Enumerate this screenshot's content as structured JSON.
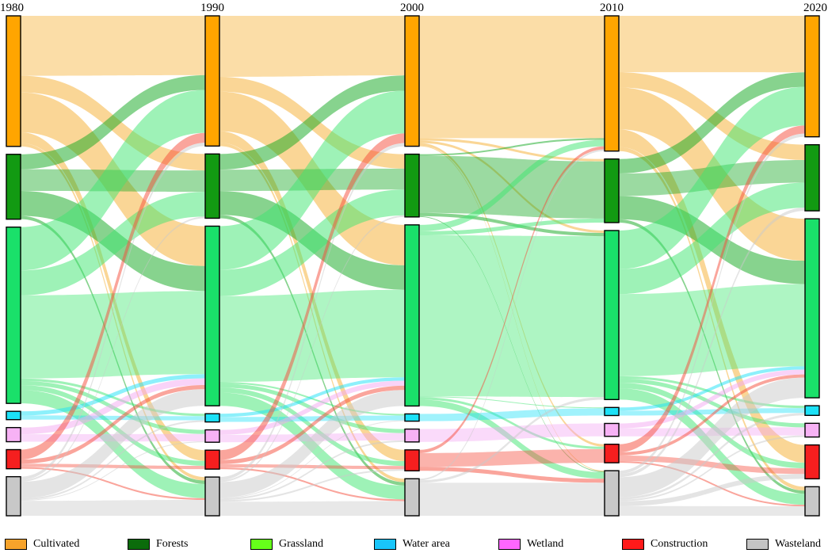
{
  "chart_data": {
    "type": "sankey",
    "years": [
      "1980",
      "1990",
      "2000",
      "2010",
      "2020"
    ],
    "categories": [
      {
        "key": "cultivated",
        "label": "Cultivated",
        "node_color": "#FFA500",
        "flow_color": "#F6AE2D",
        "legend_color": "#F7A32B"
      },
      {
        "key": "forests",
        "label": "Forests",
        "node_color": "#129A12",
        "flow_color": "#10A81E",
        "legend_color": "#0B6C0B"
      },
      {
        "key": "grassland",
        "label": "Grassland",
        "node_color": "#1AE06A",
        "flow_color": "#3EE670",
        "legend_color": "#66FF1A"
      },
      {
        "key": "water",
        "label": "Water area",
        "node_color": "#1CE1F7",
        "flow_color": "#1CE1F7",
        "legend_color": "#19C5FA"
      },
      {
        "key": "wetland",
        "label": "Wetland",
        "node_color": "#F7B2F5",
        "flow_color": "#F4A8F2",
        "legend_color": "#FF66FF"
      },
      {
        "key": "construction",
        "label": "Construction",
        "node_color": "#F51F1F",
        "flow_color": "#F54B3A",
        "legend_color": "#FF1A1A"
      },
      {
        "key": "wasteland",
        "label": "Wasteland",
        "node_color": "#C8C8C8",
        "flow_color": "#C9C9C9",
        "legend_color": "#C4C4C4"
      }
    ],
    "node_values": {
      "1980": [
        15.7,
        7.8,
        21.2,
        1.0,
        1.7,
        2.3,
        4.7
      ],
      "1990": [
        15.8,
        7.8,
        21.8,
        1.0,
        1.5,
        2.3,
        4.7
      ],
      "2000": [
        16.2,
        7.8,
        22.5,
        0.9,
        1.6,
        2.6,
        4.6
      ],
      "2010": [
        16.8,
        7.9,
        21.0,
        1.0,
        1.6,
        2.3,
        5.6
      ],
      "2020": [
        15.0,
        8.2,
        22.2,
        1.2,
        1.7,
        4.2,
        3.6
      ]
    },
    "transitions": [
      {
        "from": "1980",
        "to": "1990",
        "flows": [
          {
            "from": "cultivated",
            "to": "cultivated",
            "value": 7.2
          },
          {
            "from": "cultivated",
            "to": "forests",
            "value": 2.0
          },
          {
            "from": "cultivated",
            "to": "grassland",
            "value": 4.8
          },
          {
            "from": "cultivated",
            "to": "construction",
            "value": 1.3
          },
          {
            "from": "cultivated",
            "to": "wasteland",
            "value": 0.4
          },
          {
            "from": "forests",
            "to": "cultivated",
            "value": 1.8
          },
          {
            "from": "forests",
            "to": "forests",
            "value": 2.6
          },
          {
            "from": "forests",
            "to": "grassland",
            "value": 3.0
          },
          {
            "from": "forests",
            "to": "wasteland",
            "value": 0.4
          },
          {
            "from": "grassland",
            "to": "cultivated",
            "value": 5.2
          },
          {
            "from": "grassland",
            "to": "forests",
            "value": 3.0
          },
          {
            "from": "grassland",
            "to": "grassland",
            "value": 10.0
          },
          {
            "from": "grassland",
            "to": "water",
            "value": 0.3
          },
          {
            "from": "grassland",
            "to": "wetland",
            "value": 0.5
          },
          {
            "from": "grassland",
            "to": "construction",
            "value": 0.6
          },
          {
            "from": "grassland",
            "to": "wasteland",
            "value": 1.6
          },
          {
            "from": "water",
            "to": "grassland",
            "value": 0.5
          },
          {
            "from": "water",
            "to": "water",
            "value": 0.5
          },
          {
            "from": "wetland",
            "to": "grassland",
            "value": 0.8
          },
          {
            "from": "wetland",
            "to": "wetland",
            "value": 0.9
          },
          {
            "from": "construction",
            "to": "cultivated",
            "value": 1.2
          },
          {
            "from": "construction",
            "to": "grassland",
            "value": 0.5
          },
          {
            "from": "construction",
            "to": "construction",
            "value": 0.4
          },
          {
            "from": "construction",
            "to": "wasteland",
            "value": 0.2
          },
          {
            "from": "wasteland",
            "to": "cultivated",
            "value": 0.4
          },
          {
            "from": "wasteland",
            "to": "forests",
            "value": 0.2
          },
          {
            "from": "wasteland",
            "to": "grassland",
            "value": 2.0
          },
          {
            "from": "wasteland",
            "to": "water",
            "value": 0.2
          },
          {
            "from": "wasteland",
            "to": "wetland",
            "value": 0.1
          },
          {
            "from": "wasteland",
            "to": "wasteland",
            "value": 1.8
          }
        ]
      },
      {
        "from": "1990",
        "to": "2000",
        "flows": [
          {
            "from": "cultivated",
            "to": "cultivated",
            "value": 7.4
          },
          {
            "from": "cultivated",
            "to": "forests",
            "value": 1.8
          },
          {
            "from": "cultivated",
            "to": "grassland",
            "value": 4.8
          },
          {
            "from": "cultivated",
            "to": "construction",
            "value": 1.4
          },
          {
            "from": "cultivated",
            "to": "wasteland",
            "value": 0.4
          },
          {
            "from": "forests",
            "to": "cultivated",
            "value": 1.9
          },
          {
            "from": "forests",
            "to": "forests",
            "value": 2.6
          },
          {
            "from": "forests",
            "to": "grassland",
            "value": 2.9
          },
          {
            "from": "forests",
            "to": "wasteland",
            "value": 0.4
          },
          {
            "from": "grassland",
            "to": "cultivated",
            "value": 5.3
          },
          {
            "from": "grassland",
            "to": "forests",
            "value": 3.2
          },
          {
            "from": "grassland",
            "to": "grassland",
            "value": 10.4
          },
          {
            "from": "grassland",
            "to": "water",
            "value": 0.2
          },
          {
            "from": "grassland",
            "to": "wetland",
            "value": 0.5
          },
          {
            "from": "grassland",
            "to": "construction",
            "value": 0.6
          },
          {
            "from": "grassland",
            "to": "wasteland",
            "value": 1.6
          },
          {
            "from": "water",
            "to": "grassland",
            "value": 0.4
          },
          {
            "from": "water",
            "to": "water",
            "value": 0.6
          },
          {
            "from": "wetland",
            "to": "grassland",
            "value": 0.6
          },
          {
            "from": "wetland",
            "to": "wetland",
            "value": 0.9
          },
          {
            "from": "construction",
            "to": "cultivated",
            "value": 1.2
          },
          {
            "from": "construction",
            "to": "grassland",
            "value": 0.5
          },
          {
            "from": "construction",
            "to": "construction",
            "value": 0.4
          },
          {
            "from": "construction",
            "to": "wasteland",
            "value": 0.2
          },
          {
            "from": "wasteland",
            "to": "cultivated",
            "value": 0.4
          },
          {
            "from": "wasteland",
            "to": "forests",
            "value": 0.2
          },
          {
            "from": "wasteland",
            "to": "grassland",
            "value": 1.9
          },
          {
            "from": "wasteland",
            "to": "water",
            "value": 0.1
          },
          {
            "from": "wasteland",
            "to": "wetland",
            "value": 0.2
          },
          {
            "from": "wasteland",
            "to": "construction",
            "value": 0.2
          },
          {
            "from": "wasteland",
            "to": "wasteland",
            "value": 1.7
          }
        ]
      },
      {
        "from": "2000",
        "to": "2010",
        "flows": [
          {
            "from": "cultivated",
            "to": "cultivated",
            "value": 15.2
          },
          {
            "from": "cultivated",
            "to": "forests",
            "value": 0.3
          },
          {
            "from": "cultivated",
            "to": "grassland",
            "value": 0.3
          },
          {
            "from": "cultivated",
            "to": "construction",
            "value": 0.3
          },
          {
            "from": "cultivated",
            "to": "wasteland",
            "value": 0.1
          },
          {
            "from": "forests",
            "to": "cultivated",
            "value": 0.2
          },
          {
            "from": "forests",
            "to": "forests",
            "value": 7.1
          },
          {
            "from": "forests",
            "to": "grassland",
            "value": 0.4
          },
          {
            "from": "forests",
            "to": "wasteland",
            "value": 0.1
          },
          {
            "from": "grassland",
            "to": "cultivated",
            "value": 0.8
          },
          {
            "from": "grassland",
            "to": "forests",
            "value": 0.5
          },
          {
            "from": "grassland",
            "to": "grassland",
            "value": 20.0
          },
          {
            "from": "grassland",
            "to": "water",
            "value": 0.1
          },
          {
            "from": "grassland",
            "to": "construction",
            "value": 0.3
          },
          {
            "from": "grassland",
            "to": "wasteland",
            "value": 0.8
          },
          {
            "from": "water",
            "to": "water",
            "value": 0.9
          },
          {
            "from": "wetland",
            "to": "wetland",
            "value": 1.6
          },
          {
            "from": "construction",
            "to": "cultivated",
            "value": 0.4
          },
          {
            "from": "construction",
            "to": "construction",
            "value": 1.7
          },
          {
            "from": "construction",
            "to": "wasteland",
            "value": 0.5
          },
          {
            "from": "wasteland",
            "to": "cultivated",
            "value": 0.2
          },
          {
            "from": "wasteland",
            "to": "grassland",
            "value": 0.3
          },
          {
            "from": "wasteland",
            "to": "wasteland",
            "value": 4.1
          }
        ]
      },
      {
        "from": "2010",
        "to": "2020",
        "flows": [
          {
            "from": "cultivated",
            "to": "cultivated",
            "value": 7.0
          },
          {
            "from": "cultivated",
            "to": "forests",
            "value": 1.9
          },
          {
            "from": "cultivated",
            "to": "grassland",
            "value": 5.2
          },
          {
            "from": "cultivated",
            "to": "construction",
            "value": 2.2
          },
          {
            "from": "cultivated",
            "to": "wasteland",
            "value": 0.5
          },
          {
            "from": "forests",
            "to": "cultivated",
            "value": 1.8
          },
          {
            "from": "forests",
            "to": "forests",
            "value": 2.8
          },
          {
            "from": "forests",
            "to": "grassland",
            "value": 2.9
          },
          {
            "from": "forests",
            "to": "wasteland",
            "value": 0.4
          },
          {
            "from": "grassland",
            "to": "cultivated",
            "value": 4.8
          },
          {
            "from": "grassland",
            "to": "forests",
            "value": 3.1
          },
          {
            "from": "grassland",
            "to": "grassland",
            "value": 10.2
          },
          {
            "from": "grassland",
            "to": "water",
            "value": 0.3
          },
          {
            "from": "grassland",
            "to": "wetland",
            "value": 0.5
          },
          {
            "from": "grassland",
            "to": "construction",
            "value": 0.7
          },
          {
            "from": "grassland",
            "to": "wasteland",
            "value": 1.4
          },
          {
            "from": "water",
            "to": "grassland",
            "value": 0.4
          },
          {
            "from": "water",
            "to": "water",
            "value": 0.6
          },
          {
            "from": "wetland",
            "to": "grassland",
            "value": 0.6
          },
          {
            "from": "wetland",
            "to": "wetland",
            "value": 1.0
          },
          {
            "from": "construction",
            "to": "cultivated",
            "value": 1.0
          },
          {
            "from": "construction",
            "to": "grassland",
            "value": 0.4
          },
          {
            "from": "construction",
            "to": "construction",
            "value": 0.7
          },
          {
            "from": "construction",
            "to": "wasteland",
            "value": 0.2
          },
          {
            "from": "wasteland",
            "to": "cultivated",
            "value": 0.4
          },
          {
            "from": "wasteland",
            "to": "forests",
            "value": 0.4
          },
          {
            "from": "wasteland",
            "to": "grassland",
            "value": 2.5
          },
          {
            "from": "wasteland",
            "to": "water",
            "value": 0.3
          },
          {
            "from": "wasteland",
            "to": "wetland",
            "value": 0.2
          },
          {
            "from": "wasteland",
            "to": "construction",
            "value": 0.6
          },
          {
            "from": "wasteland",
            "to": "wasteland",
            "value": 1.2
          }
        ]
      }
    ],
    "legend": {
      "placement": "bottom"
    },
    "title": "",
    "xlabel": "",
    "ylabel": ""
  }
}
